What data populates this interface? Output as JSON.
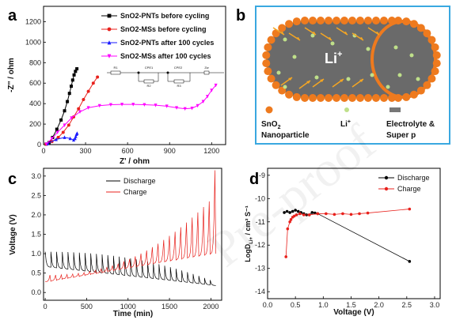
{
  "figure": {
    "panel_labels": [
      "a",
      "b",
      "c",
      "d"
    ],
    "watermark": "Pre-proof"
  },
  "chart_data": [
    {
      "panel": "a",
      "type": "scatter",
      "xlabel": "Z' / ohm",
      "ylabel": "-Z'' / ohm",
      "xlim": [
        0,
        1300
      ],
      "ylim": [
        0,
        1350
      ],
      "xticks": [
        0,
        300,
        600,
        900,
        1200
      ],
      "yticks": [
        0,
        200,
        400,
        600,
        800,
        1000,
        1200
      ],
      "legend_position": "top-right",
      "circuit_labels": [
        "R1",
        "CPE1",
        "R2",
        "CPE2",
        "R3",
        "Zw"
      ],
      "series": [
        {
          "name": "SnO2-PNTs before cycling",
          "color": "#000000",
          "marker": "square",
          "x": [
            18,
            40,
            65,
            95,
            125,
            150,
            170,
            185,
            198,
            208,
            218,
            228,
            238
          ],
          "y": [
            5,
            20,
            70,
            150,
            240,
            330,
            420,
            500,
            570,
            630,
            680,
            715,
            740
          ]
        },
        {
          "name": "SnO2-MSs before cycling",
          "color": "#e8211c",
          "marker": "circle",
          "x": [
            18,
            60,
            105,
            140,
            180,
            215,
            250,
            285,
            320,
            355,
            385
          ],
          "y": [
            5,
            30,
            70,
            120,
            190,
            270,
            350,
            440,
            520,
            600,
            660
          ]
        },
        {
          "name": "SnO2-PNTs after 100 cycles",
          "color": "#1a1aff",
          "marker": "triangle",
          "x": [
            30,
            90,
            150,
            190,
            215,
            225,
            230,
            235,
            240
          ],
          "y": [
            10,
            50,
            70,
            60,
            45,
            60,
            80,
            100,
            110
          ]
        },
        {
          "name": "SnO2-MSs  after 100 cycles",
          "color": "#ff00ff",
          "marker": "triangle-down",
          "x": [
            20,
            60,
            100,
            150,
            200,
            260,
            320,
            400,
            480,
            560,
            640,
            720,
            800,
            880,
            950,
            1010,
            1060,
            1100,
            1140,
            1170,
            1200,
            1230
          ],
          "y": [
            5,
            60,
            120,
            190,
            260,
            320,
            360,
            380,
            390,
            392,
            392,
            390,
            385,
            375,
            360,
            350,
            355,
            380,
            420,
            470,
            530,
            580
          ]
        }
      ]
    },
    {
      "panel": "c",
      "type": "line",
      "xlabel": "Time (min)",
      "ylabel": "Voltage (V)",
      "xlim": [
        -20,
        2130
      ],
      "ylim": [
        -0.2,
        3.2
      ],
      "xticks": [
        0,
        500,
        1000,
        1500,
        2000
      ],
      "yticks": [
        0.0,
        0.5,
        1.0,
        1.5,
        2.0,
        2.5,
        3.0
      ],
      "legend_position": "top-center",
      "series": [
        {
          "name": "Discharge",
          "color": "#000000",
          "x": [
            0,
            2060
          ],
          "cycles": 30,
          "base_start": 0.65,
          "base_end": 0.18,
          "peak_start": 1.05,
          "peak_end": 0.32
        },
        {
          "name": "Charge",
          "color": "#e8211c",
          "x": [
            0,
            2060
          ],
          "cycles": 30,
          "base_start": 0.28,
          "base_end": 1.0,
          "peak_start": 0.45,
          "peak_end": 2.5,
          "final_peak": 3.15
        }
      ]
    },
    {
      "panel": "d",
      "type": "line",
      "xlabel": "Voltage (V)",
      "ylabel": "LogD",
      "ylabel_sub": "Li+",
      "ylabel_unit": " / cm² S⁻¹",
      "xlim": [
        0.0,
        3.1
      ],
      "ylim": [
        -14.3,
        -8.7
      ],
      "xticks": [
        0.0,
        0.5,
        1.0,
        1.5,
        2.0,
        2.5,
        3.0
      ],
      "yticks": [
        -14,
        -13,
        -12,
        -11,
        -10,
        -9
      ],
      "legend_position": "top-right",
      "series": [
        {
          "name": "Discharge",
          "color": "#000000",
          "marker": "circle",
          "x": [
            0.3,
            0.35,
            0.4,
            0.45,
            0.5,
            0.55,
            0.6,
            0.65,
            0.7,
            0.75,
            0.8,
            0.85,
            0.9,
            2.55
          ],
          "y": [
            -10.6,
            -10.55,
            -10.6,
            -10.55,
            -10.5,
            -10.55,
            -10.6,
            -10.65,
            -10.7,
            -10.7,
            -10.6,
            -10.62,
            -10.65,
            -12.7
          ]
        },
        {
          "name": "Charge",
          "color": "#e8211c",
          "marker": "circle",
          "x": [
            0.33,
            0.36,
            0.4,
            0.42,
            0.45,
            0.48,
            0.52,
            0.58,
            0.65,
            0.75,
            0.9,
            1.05,
            1.2,
            1.35,
            1.5,
            1.65,
            1.8,
            2.55
          ],
          "y": [
            -12.5,
            -11.3,
            -11.0,
            -10.9,
            -10.8,
            -10.75,
            -10.7,
            -10.65,
            -10.7,
            -10.7,
            -10.65,
            -10.65,
            -10.68,
            -10.65,
            -10.68,
            -10.65,
            -10.62,
            -10.45
          ]
        }
      ]
    }
  ],
  "schematic": {
    "ion_label": "Li",
    "ion_sup": "+",
    "legend": [
      {
        "line1": "SnO",
        "sub": "2",
        "line2": "Nanoparticle",
        "swatch": "circle",
        "color": "#ee7a1e"
      },
      {
        "line1": "Li",
        "sup": "+",
        "line2": "",
        "swatch": "dot",
        "color": "#bfe08a"
      },
      {
        "line1": "Electrolyte &",
        "line2": "Super p",
        "swatch": "rect",
        "color": "#777777"
      }
    ],
    "colors": {
      "frame": "#3aa8e0",
      "body": "#6a6a6a",
      "particle": "#ee7a1e",
      "arrow": "#f5a623",
      "dot": "#bfe08a"
    }
  }
}
